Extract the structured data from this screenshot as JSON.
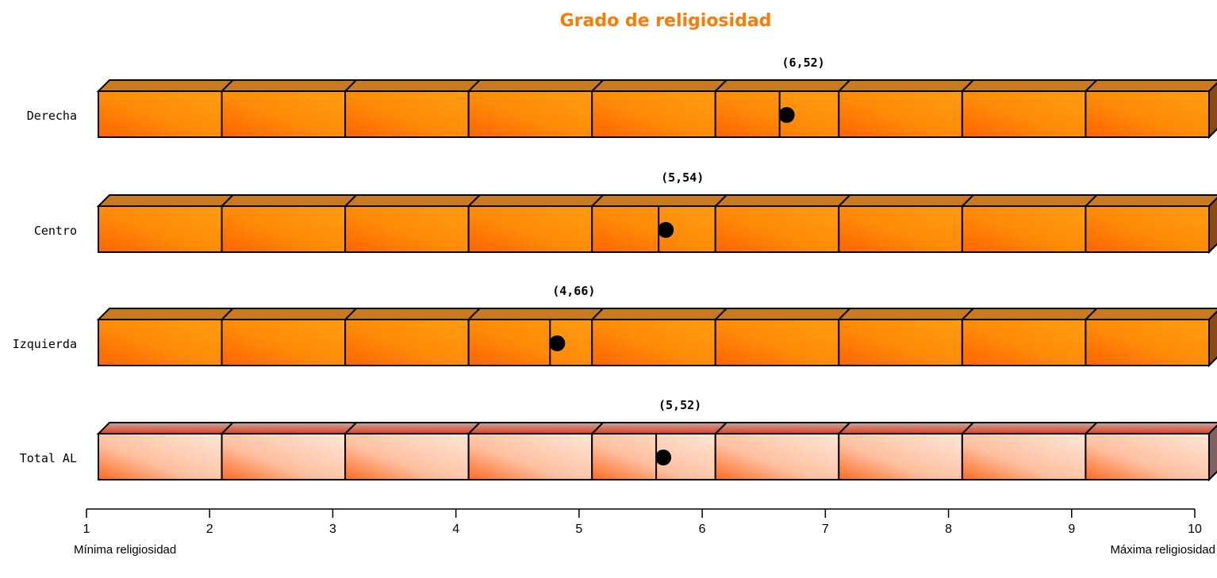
{
  "chart_data": {
    "type": "bar",
    "title": "Grado de religiosidad",
    "categories": [
      "Derecha",
      "Centro",
      "Izquierda",
      "Total AL"
    ],
    "values": [
      6.52,
      5.54,
      4.66,
      5.52
    ],
    "value_labels": [
      "(6,52)",
      "(5,54)",
      "(4,66)",
      "(5,52)"
    ],
    "xlim": [
      1,
      10
    ],
    "x_ticks": [
      1,
      2,
      3,
      4,
      5,
      6,
      7,
      8,
      9,
      10
    ],
    "x_min_label": "Mínima religiosidad",
    "x_max_label": "Máxima religiosidad",
    "grid": false,
    "colors": {
      "title": "#ff7a00",
      "bar_dark": "#ff6a00",
      "bar_light": "#ff9a10",
      "bar_top": "#c87a20",
      "bar_side": "#8a4a10",
      "total_dark": "#ff6a20",
      "total_light": "#ffe2d2",
      "total_top": "#c8a898",
      "total_side": "#806060",
      "marker": "#000000"
    }
  }
}
